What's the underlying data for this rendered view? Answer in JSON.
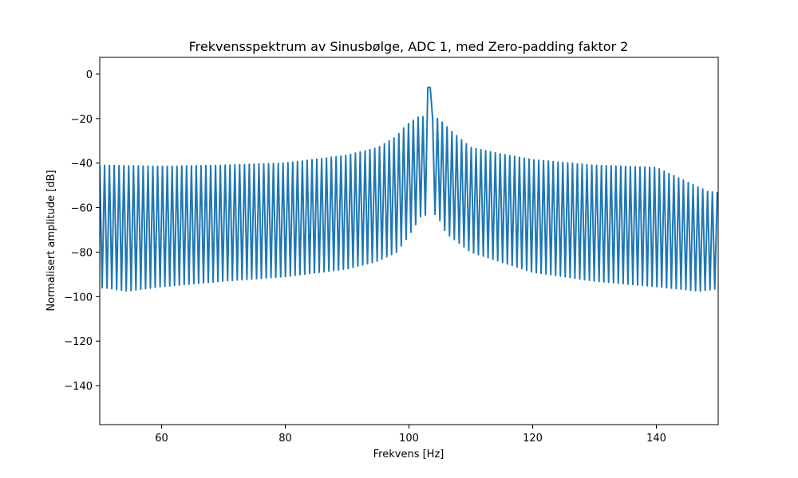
{
  "chart_data": {
    "type": "line",
    "title": "Frekvensspektrum av Sinusbølge, ADC 1, med Zero-padding faktor 2",
    "xlabel": "Frekvens [Hz]",
    "ylabel": "Normalisert amplitude [dB]",
    "xlim": [
      50,
      150
    ],
    "ylim": [
      -157.5,
      7.5
    ],
    "x_ticks": [
      60,
      80,
      100,
      120,
      140
    ],
    "y_ticks": [
      0,
      -20,
      -40,
      -60,
      -80,
      -100,
      -120,
      -140
    ],
    "x_tick_labels": [
      "60",
      "80",
      "100",
      "120",
      "140"
    ],
    "y_tick_labels": [
      "0",
      "−20",
      "−40",
      "−60",
      "−80",
      "−100",
      "−120",
      "−140"
    ],
    "grid": false,
    "legend": "none",
    "line_color": "#1f77b4",
    "series": [
      {
        "peak_frequency": 103.2,
        "peak_value": -6,
        "x_step": 0.39,
        "x_start": 50,
        "x_end": 150,
        "sidelobe_peaks": [
          {
            "x": 50.8,
            "y": -41
          },
          {
            "x": 60,
            "y": -41.5
          },
          {
            "x": 70,
            "y": -41
          },
          {
            "x": 80,
            "y": -40
          },
          {
            "x": 90,
            "y": -36.5
          },
          {
            "x": 95,
            "y": -33
          },
          {
            "x": 98,
            "y": -28
          },
          {
            "x": 99.5,
            "y": -23
          },
          {
            "x": 101.7,
            "y": -19
          },
          {
            "x": 104.8,
            "y": -20
          },
          {
            "x": 107,
            "y": -26
          },
          {
            "x": 110,
            "y": -33
          },
          {
            "x": 115,
            "y": -36
          },
          {
            "x": 120,
            "y": -38.5
          },
          {
            "x": 130,
            "y": -41
          },
          {
            "x": 140,
            "y": -42
          },
          {
            "x": 148.5,
            "y": -53
          }
        ],
        "null_floor": [
          {
            "x": 50.8,
            "y": -96
          },
          {
            "x": 54.5,
            "y": -97.5
          },
          {
            "x": 60,
            "y": -95.5
          },
          {
            "x": 70,
            "y": -93
          },
          {
            "x": 80,
            "y": -91
          },
          {
            "x": 90,
            "y": -87.5
          },
          {
            "x": 95,
            "y": -84
          },
          {
            "x": 98,
            "y": -80
          },
          {
            "x": 100,
            "y": -72.5
          },
          {
            "x": 102,
            "y": -63.5
          },
          {
            "x": 104.5,
            "y": -63
          },
          {
            "x": 106,
            "y": -71.5
          },
          {
            "x": 110,
            "y": -80
          },
          {
            "x": 120,
            "y": -89
          },
          {
            "x": 130,
            "y": -93
          },
          {
            "x": 140,
            "y": -95.5
          },
          {
            "x": 147,
            "y": -97.5
          },
          {
            "x": 149.8,
            "y": -96.5
          }
        ]
      }
    ]
  }
}
